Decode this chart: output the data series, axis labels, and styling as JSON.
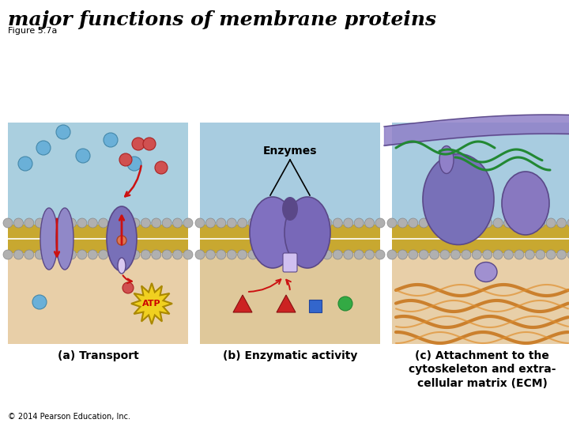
{
  "title": "major functions of membrane proteins",
  "subtitle": "Figure 5.7a",
  "copyright": "© 2014 Pearson Education, Inc.",
  "panel_labels": [
    "(a) Transport",
    "(b) Enzymatic activity",
    "(c) Attachment to the\ncytoskeleton and extra-\ncellular matrix (ECM)"
  ],
  "bg_color": "#ffffff",
  "title_color": "#000000",
  "title_fontsize": 18,
  "subtitle_fontsize": 8,
  "label_fontsize": 10,
  "panel_a_bg_top": "#aacfdf",
  "panel_a_bg_bot": "#e8cfa8",
  "panel_b_bg_top": "#a8cce0",
  "panel_b_bg_bot": "#dfc89a",
  "panel_c_bg_top": "#a8cce0",
  "panel_c_bg_bot": "#e8cfa8",
  "membrane_gold": "#c8a830",
  "membrane_bead": "#b0b0b0",
  "protein_fill": "#8878b8",
  "protein_edge": "#5a4888",
  "atp_yellow": "#f0d020",
  "atp_red": "#cc0000",
  "arrow_red": "#cc1111",
  "molecule_blue": "#6ab0d8",
  "molecule_red": "#d05050",
  "enzyme_b_label": "Enzymes",
  "shape_triangle": "#cc2222",
  "shape_square": "#3366cc",
  "shape_circle_g": "#33aa44",
  "green_curve": "#228833",
  "orange_filament": "#c87820"
}
